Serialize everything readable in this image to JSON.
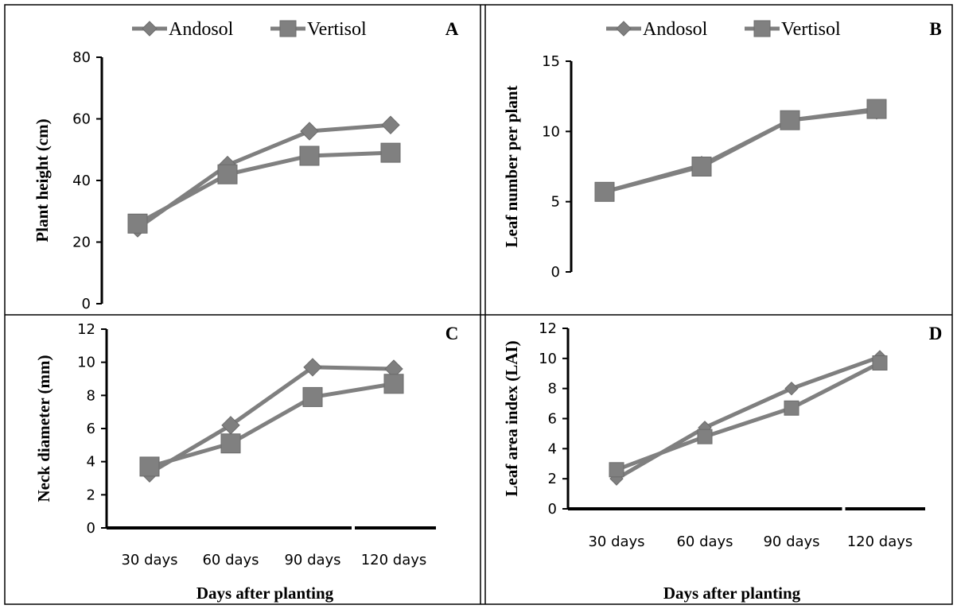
{
  "chart_data": [
    {
      "panel": "A",
      "type": "line",
      "categories": [
        "30 days",
        "60 days",
        "90 days",
        "120 days"
      ],
      "series": [
        {
          "name": "Andosol",
          "values": [
            24.5,
            45.0,
            56.0,
            58.0
          ]
        },
        {
          "name": "Vertisol",
          "values": [
            26.0,
            42.0,
            48.0,
            49.0
          ]
        }
      ],
      "ylabel": "Plant height (cm)",
      "xlabel": "",
      "ylim": [
        0,
        80
      ],
      "yticks": [
        0,
        20,
        40,
        60,
        80
      ],
      "show_xticks": false,
      "grid": false,
      "legend": "top"
    },
    {
      "panel": "B",
      "type": "line",
      "categories": [
        "30 days",
        "60 days",
        "90 days",
        "120 days"
      ],
      "series": [
        {
          "name": "Andosol",
          "values": [
            5.7,
            7.6,
            10.8,
            11.5
          ]
        },
        {
          "name": "Vertisol",
          "values": [
            5.7,
            7.5,
            10.8,
            11.6
          ]
        }
      ],
      "ylabel": "Leaf number per plant",
      "xlabel": "",
      "ylim": [
        0,
        15
      ],
      "yticks": [
        0,
        5,
        10,
        15
      ],
      "show_xticks": false,
      "grid": false,
      "legend": "top"
    },
    {
      "panel": "C",
      "type": "line",
      "categories": [
        "30 days",
        "60 days",
        "90 days",
        "120 days"
      ],
      "series": [
        {
          "name": "Andosol",
          "values": [
            3.3,
            6.2,
            9.7,
            9.6
          ]
        },
        {
          "name": "Vertisol",
          "values": [
            3.7,
            5.1,
            7.9,
            8.7
          ]
        }
      ],
      "ylabel": "Neck diameter (mm)",
      "xlabel": "Days after planting",
      "ylim": [
        0,
        12
      ],
      "yticks": [
        0,
        2,
        4,
        6,
        8,
        10,
        12
      ],
      "show_xticks": true,
      "grid": false,
      "legend": "none"
    },
    {
      "panel": "D",
      "type": "line",
      "categories": [
        "30 days",
        "60 days",
        "90 days",
        "120 days"
      ],
      "series": [
        {
          "name": "Andosol",
          "values": [
            2.0,
            5.4,
            8.0,
            10.1
          ]
        },
        {
          "name": "Vertisol",
          "values": [
            2.6,
            4.8,
            6.7,
            9.7
          ]
        }
      ],
      "ylabel": "Leaf area index (LAI)",
      "xlabel": "Days after planting",
      "ylim": [
        0,
        12
      ],
      "yticks": [
        0,
        2,
        4,
        6,
        8,
        10,
        12
      ],
      "show_xticks": true,
      "grid": false,
      "legend": "none"
    }
  ],
  "colors": {
    "andosol": "#7f7f7f",
    "vertisol": "#808080",
    "axis": "#000000",
    "frame": "#000000"
  }
}
